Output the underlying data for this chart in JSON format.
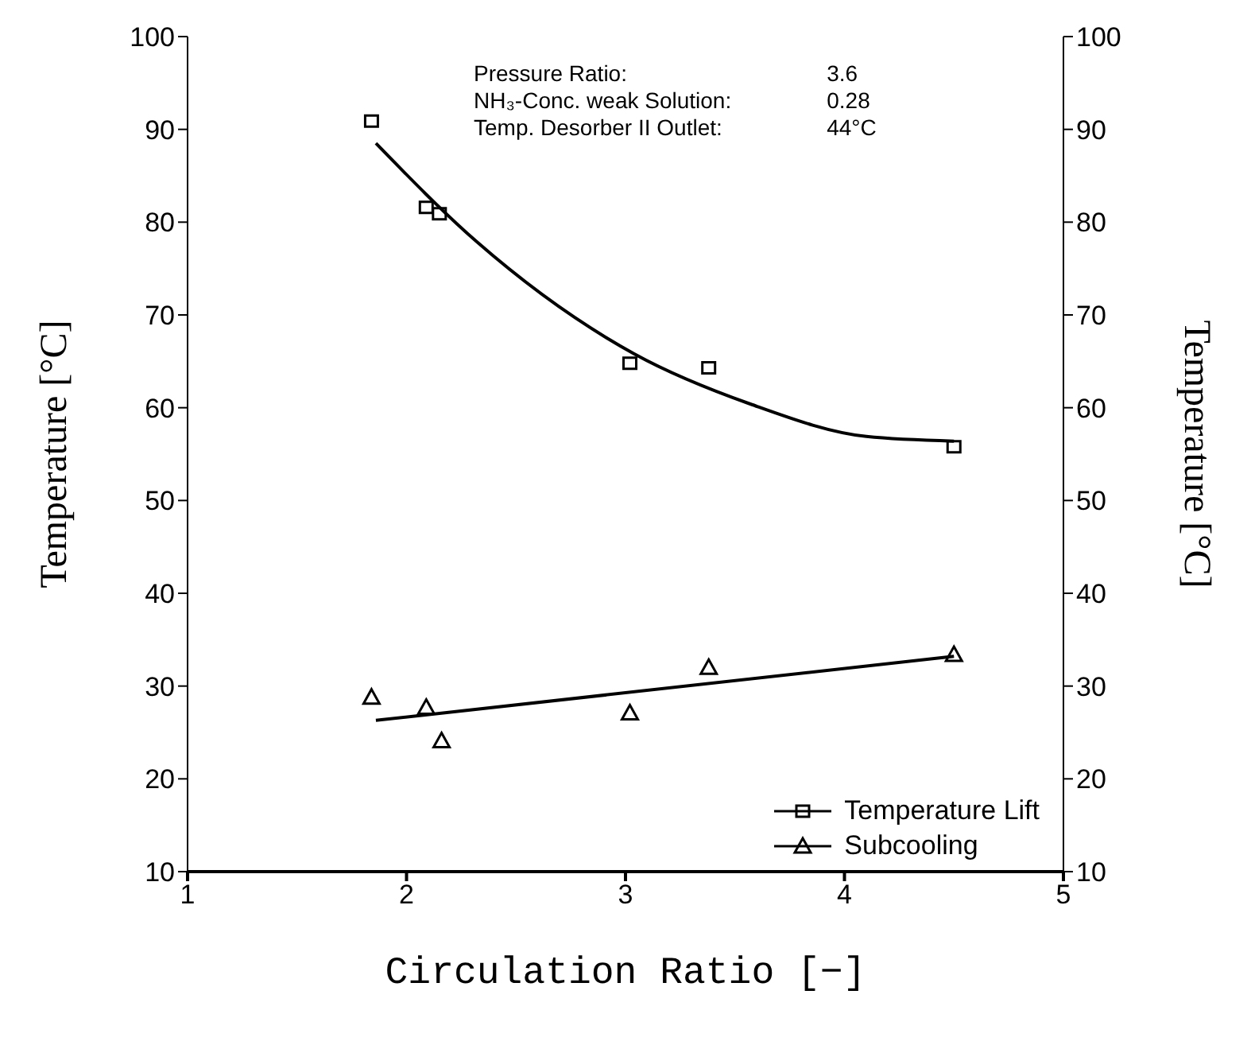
{
  "chart_data": {
    "type": "scatter",
    "xlabel": "Circulation Ratio   [−]",
    "ylabel": "Temperature   [°C]",
    "y2label": "Temperature   [°C]",
    "xlim": [
      1,
      5
    ],
    "xticks": [
      1,
      2,
      3,
      4,
      5
    ],
    "ylim": [
      10,
      100
    ],
    "yticks": [
      10,
      20,
      30,
      40,
      50,
      60,
      70,
      80,
      90,
      100
    ],
    "y2lim": [
      10,
      100
    ],
    "y2ticks": [
      10,
      20,
      30,
      40,
      50,
      60,
      70,
      80,
      90,
      100
    ],
    "grid": false,
    "legend": "bottom right",
    "annotations": [
      "Pressure Ratio:",
      "3.6",
      "NH₃-Conc. weak Solution:",
      "0.28",
      "Temp. Desorber II Outlet:",
      "44°C"
    ],
    "series": [
      {
        "name": "Temperature Lift",
        "marker": "square",
        "color": "#000000",
        "x": [
          1.84,
          2.09,
          2.15,
          3.02,
          3.38,
          4.5
        ],
        "values": [
          90.9,
          81.6,
          80.9,
          64.8,
          64.3,
          55.8
        ]
      },
      {
        "name": "Subcooling",
        "marker": "triangle",
        "color": "#000000",
        "x": [
          1.84,
          2.09,
          2.16,
          3.02,
          3.38,
          4.5
        ],
        "values": [
          28.8,
          27.7,
          24.1,
          27.1,
          32.0,
          33.4
        ]
      },
      {
        "type": "line",
        "color": "#000000",
        "x": [
          1.86,
          2.32,
          3.04,
          3.57,
          4.1,
          4.5
        ],
        "values": [
          88.5,
          77.9,
          65.8,
          60.4,
          56.9,
          56.4
        ]
      },
      {
        "type": "line",
        "color": "#000000",
        "x": [
          1.86,
          4.5
        ],
        "values": [
          26.3,
          33.2
        ]
      }
    ]
  }
}
